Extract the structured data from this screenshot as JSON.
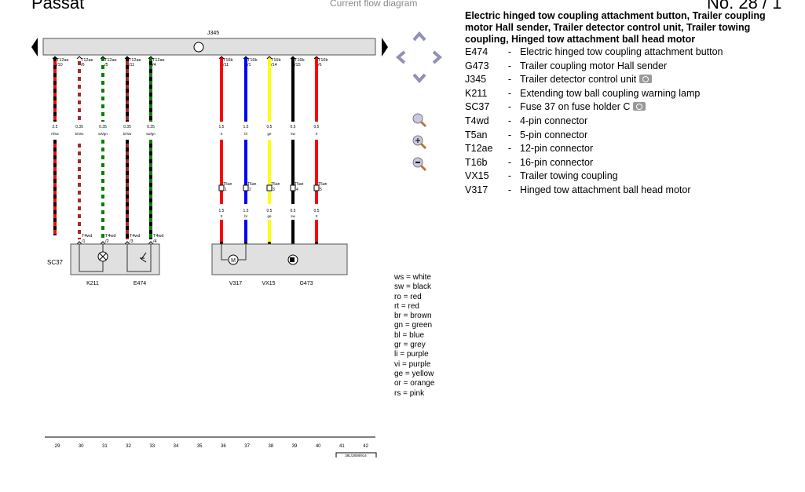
{
  "header": {
    "left": "Passat",
    "center": "Current flow diagram",
    "right": "No. 28 / 1"
  },
  "diagram": {
    "control_unit": "J345",
    "wires": [
      {
        "conn": "T12ae",
        "pin": "/10",
        "size": "2.5",
        "code": "rt/sw",
        "c1": "#ff0000",
        "c2": "#000000",
        "lower": false
      },
      {
        "conn": "T12ae",
        "pin": "/6",
        "size": "0.35",
        "code": "br/ws",
        "c1": "#a52a2a",
        "c2": "#ffffff",
        "lower": true
      },
      {
        "conn": "T12ae",
        "pin": "/5",
        "size": "0.35",
        "code": "ws/gn",
        "c1": "#ffffff",
        "c2": "#008000",
        "lower": true
      },
      {
        "conn": "T12ae",
        "pin": "/11",
        "size": "0.35",
        "code": "br/sw",
        "c1": "#a52a2a",
        "c2": "#000000",
        "lower": true
      },
      {
        "conn": "T12ae",
        "pin": "/4",
        "size": "0.35",
        "code": "sw/gn",
        "c1": "#000000",
        "c2": "#008000",
        "lower": true
      },
      {
        "conn": "T16b",
        "pin": "/11",
        "size": "1.5",
        "code": "rt",
        "c1": "#ff0000",
        "c2": "#ff0000",
        "t5": "1"
      },
      {
        "conn": "T16b",
        "pin": "/1",
        "size": "1.5",
        "code": "bl",
        "c1": "#0000ff",
        "c2": "#0000ff",
        "t5": "2"
      },
      {
        "conn": "T16b",
        "pin": "/14",
        "size": "0.5",
        "code": "ge",
        "c1": "#ffff00",
        "c2": "#ffff00",
        "t5": "3"
      },
      {
        "conn": "T16b",
        "pin": "/15",
        "size": "0.5",
        "code": "sw",
        "c1": "#000000",
        "c2": "#000000",
        "t5": "4"
      },
      {
        "conn": "T16b",
        "pin": "/6",
        "size": "0.5",
        "code": "rt",
        "c1": "#ff0000",
        "c2": "#ff0000",
        "t5": "5"
      }
    ],
    "t5an": "T5an",
    "t4wd": {
      "conn": "T4wd",
      "pins": [
        "/1",
        "/2",
        "/3",
        "/4"
      ]
    },
    "components": {
      "sc": "SC37",
      "k": "K211",
      "e": "E474",
      "v": "V317",
      "vx": "VX15",
      "g": "G473"
    },
    "columns": [
      "29",
      "30",
      "31",
      "32",
      "33",
      "34",
      "35",
      "36",
      "37",
      "38",
      "39",
      "40",
      "41",
      "42"
    ],
    "ref": "38L/2808/914"
  },
  "nav": {
    "icons": [
      "arrow-up",
      "arrow-left",
      "arrow-right",
      "arrow-down",
      "zoom-fit",
      "zoom-in",
      "zoom-out"
    ]
  },
  "legend": {
    "title": "Electric hinged tow coupling attachment button, Trailer coupling motor Hall sender, Trailer detector control unit, Trailer towing coupling, Hinged tow attachment ball head motor",
    "items": [
      {
        "k": "E474",
        "d": "Electric hinged tow coupling attachment button"
      },
      {
        "k": "G473",
        "d": "Trailer coupling motor Hall sender"
      },
      {
        "k": "J345",
        "d": "Trailer detector control unit",
        "cam": true
      },
      {
        "k": "K211",
        "d": "Extending tow ball coupling warning lamp"
      },
      {
        "k": "SC37",
        "d": "Fuse 37 on fuse holder C",
        "cam": true
      },
      {
        "k": "T4wd",
        "d": "4-pin connector"
      },
      {
        "k": "T5an",
        "d": "5-pin connector"
      },
      {
        "k": "T12ae",
        "d": "12-pin connector"
      },
      {
        "k": "T16b",
        "d": "16-pin connector"
      },
      {
        "k": "VX15",
        "d": "Trailer towing coupling"
      },
      {
        "k": "V317",
        "d": "Hinged tow attachment ball head motor"
      }
    ]
  },
  "colors": [
    "ws = white",
    "sw = black",
    "ro = red",
    "rt = red",
    "br = brown",
    "gn = green",
    "bl = blue",
    "gr = grey",
    "li = purple",
    "vi = purple",
    "ge = yellow",
    "or = orange",
    "rs = pink"
  ]
}
